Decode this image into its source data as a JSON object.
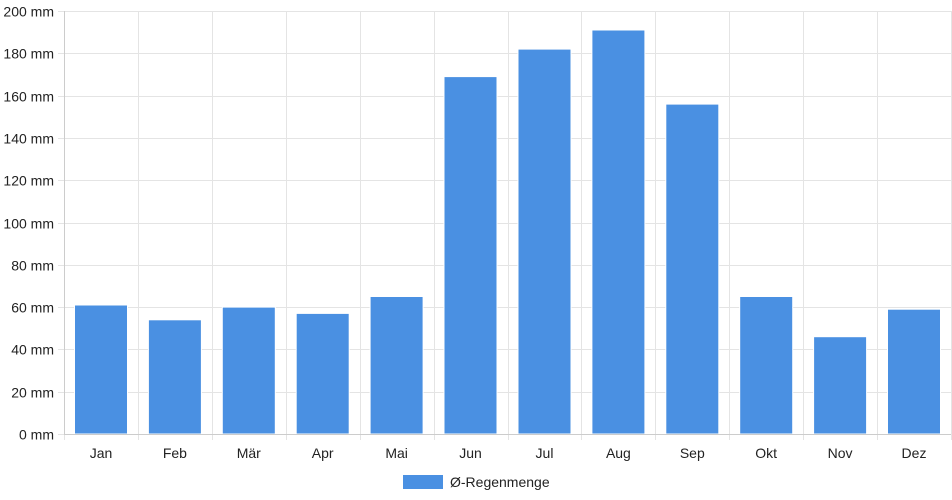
{
  "chart_data": {
    "type": "bar",
    "categories": [
      "Jan",
      "Feb",
      "Mär",
      "Apr",
      "Mai",
      "Jun",
      "Jul",
      "Aug",
      "Sep",
      "Okt",
      "Nov",
      "Dez"
    ],
    "series": [
      {
        "name": "Ø-Regenmenge",
        "color": "#4a90e2",
        "values": [
          61,
          54,
          60,
          57,
          65,
          169,
          182,
          191,
          156,
          65,
          46,
          59
        ]
      }
    ],
    "title": "",
    "xlabel": "",
    "ylabel": "",
    "ylim": [
      0,
      200
    ],
    "y_ticks": [
      "0 mm",
      "20 mm",
      "40 mm",
      "60 mm",
      "80 mm",
      "100 mm",
      "120 mm",
      "140 mm",
      "160 mm",
      "180 mm",
      "200 mm"
    ],
    "y_unit": "mm",
    "grid": true,
    "legend_position": "bottom-center",
    "colors": {
      "grid": "#e4e4e4",
      "axis": "#cccccc",
      "text": "#222222"
    }
  }
}
